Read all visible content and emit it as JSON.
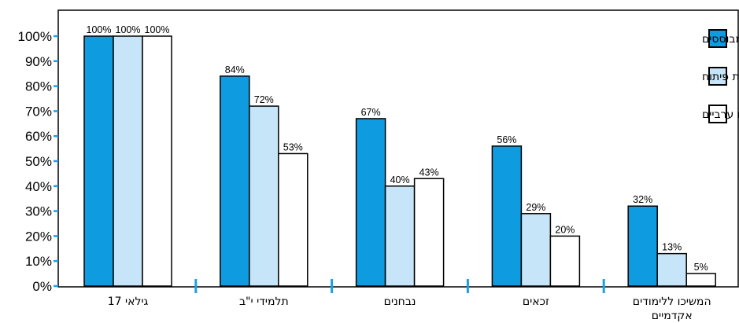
{
  "chart_data": {
    "type": "bar",
    "categories": [
      "גילאי 17",
      "תלמידי י\"ב",
      "נבחנים",
      "זכאים",
      "המשיכו ללימודים אקדמיים"
    ],
    "category_lines": [
      [
        "גילאי 17"
      ],
      [
        "תלמידי י\"ב"
      ],
      [
        "נבחנים"
      ],
      [
        "זכאים"
      ],
      [
        "המשיכו ללימודים",
        "אקדמיים"
      ]
    ],
    "series": [
      {
        "name": "יישובים מבוססים",
        "color": "#0f9be0",
        "values": [
          100,
          84,
          67,
          56,
          32
        ],
        "labels": [
          "100%",
          "84%",
          "67%",
          "56%",
          "32%"
        ]
      },
      {
        "name": "עיירות פיתוח",
        "color": "#c7e5f8",
        "values": [
          100,
          72,
          40,
          29,
          13
        ],
        "labels": [
          "100%",
          "72%",
          "40%",
          "29%",
          "13%"
        ]
      },
      {
        "name": "יישובים ערביים",
        "color": "#ffffff",
        "values": [
          100,
          53,
          43,
          20,
          5
        ],
        "labels": [
          "100%",
          "53%",
          "43%",
          "20%",
          "5%"
        ]
      }
    ],
    "yticks": [
      "0%",
      "10%",
      "20%",
      "30%",
      "40%",
      "50%",
      "60%",
      "70%",
      "80%",
      "90%",
      "100%"
    ],
    "ylim": [
      0,
      110
    ],
    "legend_position": "top-right",
    "grid": false,
    "tick_color": "#1aa0e6"
  }
}
